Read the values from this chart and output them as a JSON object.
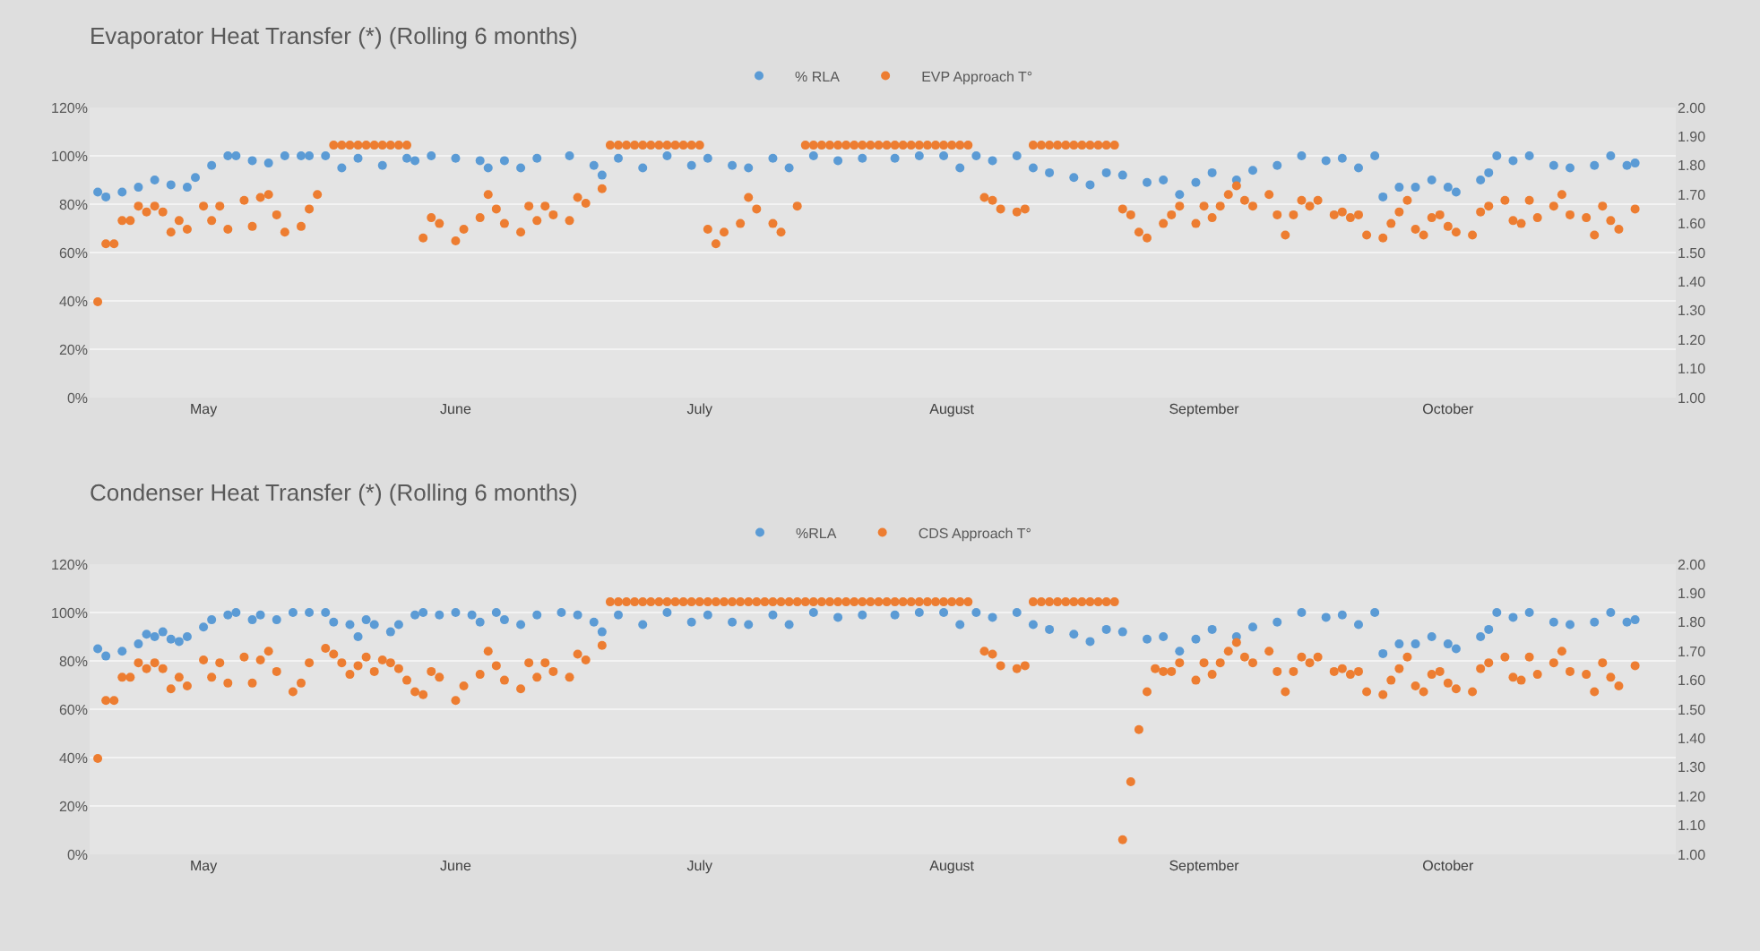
{
  "chart_data": [
    {
      "type": "scatter",
      "title": "Evaporator Heat Transfer (*) (Rolling 6 months)",
      "marker": "circle",
      "grid": "y",
      "legend": "top",
      "xlim": [
        "--04-17",
        "--10-29"
      ],
      "xticks": [
        {
          "value": "--05-01",
          "label": "May"
        },
        {
          "value": "--06-01",
          "label": "June"
        },
        {
          "value": "--07-01",
          "label": "July"
        },
        {
          "value": "--08-01",
          "label": "August"
        },
        {
          "value": "--09-01",
          "label": "September"
        },
        {
          "value": "--10-01",
          "label": "October"
        }
      ],
      "ylim": [
        0,
        120
      ],
      "yticks": [
        {
          "value": 0,
          "label": "0%"
        },
        {
          "value": 20,
          "label": "20%"
        },
        {
          "value": 40,
          "label": "40%"
        },
        {
          "value": 60,
          "label": "60%"
        },
        {
          "value": 80,
          "label": "80%"
        },
        {
          "value": 100,
          "label": "100%"
        },
        {
          "value": 120,
          "label": "120%"
        }
      ],
      "y2lim": [
        1,
        2
      ],
      "y2ticks": [
        {
          "value": 1,
          "label": "1.00"
        },
        {
          "value": 1.1,
          "label": "1.10"
        },
        {
          "value": 1.2,
          "label": "1.20"
        },
        {
          "value": 1.3,
          "label": "1.30"
        },
        {
          "value": 1.4,
          "label": "1.40"
        },
        {
          "value": 1.5,
          "label": "1.50"
        },
        {
          "value": 1.6,
          "label": "1.60"
        },
        {
          "value": 1.7,
          "label": "1.70"
        },
        {
          "value": 1.8,
          "label": "1.80"
        },
        {
          "value": 1.9,
          "label": "1.90"
        },
        {
          "value": 2,
          "label": "2.00"
        }
      ],
      "series": [
        {
          "name": "% RLA",
          "color": "#5b9bd5",
          "x": [
            "--04-18",
            "--04-19",
            "--04-21",
            "--04-23",
            "--04-25",
            "--04-27",
            "--04-29",
            "--04-30",
            "--05-02",
            "--05-04",
            "--05-05",
            "--05-07",
            "--05-09",
            "--05-11",
            "--05-13",
            "--05-14",
            "--05-16",
            "--05-18",
            "--05-20",
            "--05-23",
            "--05-26",
            "--05-27",
            "--05-29",
            "--06-01",
            "--06-04",
            "--06-05",
            "--06-07",
            "--06-09",
            "--06-11",
            "--06-15",
            "--06-18",
            "--06-19",
            "--06-21",
            "--06-24",
            "--06-27",
            "--06-30",
            "--07-02",
            "--07-05",
            "--07-07",
            "--07-10",
            "--07-12",
            "--07-15",
            "--07-18",
            "--07-21",
            "--07-25",
            "--07-28",
            "--07-31",
            "--08-02",
            "--08-04",
            "--08-06",
            "--08-09",
            "--08-11",
            "--08-13",
            "--08-16",
            "--08-18",
            "--08-20",
            "--08-22",
            "--08-25",
            "--08-27",
            "--08-29",
            "--08-31",
            "--09-02",
            "--09-05",
            "--09-07",
            "--09-10",
            "--09-13",
            "--09-16",
            "--09-18",
            "--09-20",
            "--09-22",
            "--09-23",
            "--09-25",
            "--09-27",
            "--09-29",
            "--10-01",
            "--10-02",
            "--10-05",
            "--10-06",
            "--10-07",
            "--10-09",
            "--10-11",
            "--10-14",
            "--10-16",
            "--10-19",
            "--10-21",
            "--10-23",
            "--10-24"
          ],
          "values": [
            85,
            83,
            85,
            87,
            90,
            88,
            87,
            91,
            96,
            100,
            100,
            98,
            97,
            100,
            100,
            100,
            100,
            95,
            99,
            96,
            99,
            98,
            100,
            99,
            98,
            95,
            98,
            95,
            99,
            100,
            96,
            92,
            99,
            95,
            100,
            96,
            99,
            96,
            95,
            99,
            95,
            100,
            98,
            99,
            99,
            100,
            100,
            95,
            100,
            98,
            100,
            95,
            93,
            91,
            88,
            93,
            92,
            89,
            90,
            84,
            89,
            93,
            90,
            94,
            96,
            100,
            98,
            99,
            95,
            100,
            83,
            87,
            87,
            90,
            87,
            85,
            90,
            93,
            100,
            98,
            100,
            96,
            95,
            96,
            100,
            96,
            97
          ]
        },
        {
          "name": "EVP Approach T°",
          "color": "#ed7d31",
          "axis": "y2",
          "x": [
            "--04-18",
            "--04-19",
            "--04-20",
            "--04-21",
            "--04-22",
            "--04-23",
            "--04-24",
            "--04-25",
            "--04-26",
            "--04-27",
            "--04-28",
            "--04-29",
            "--05-01",
            "--05-02",
            "--05-03",
            "--05-04",
            "--05-06",
            "--05-07",
            "--05-08",
            "--05-09",
            "--05-10",
            "--05-11",
            "--05-13",
            "--05-14",
            "--05-15",
            "--05-17",
            "--05-18",
            "--05-19",
            "--05-20",
            "--05-21",
            "--05-22",
            "--05-23",
            "--05-24",
            "--05-25",
            "--05-26",
            "--05-28",
            "--05-29",
            "--05-30",
            "--06-01",
            "--06-02",
            "--06-04",
            "--06-05",
            "--06-06",
            "--06-07",
            "--06-09",
            "--06-10",
            "--06-11",
            "--06-12",
            "--06-13",
            "--06-15",
            "--06-16",
            "--06-17",
            "--06-19",
            "--06-20",
            "--06-21",
            "--06-22",
            "--06-23",
            "--06-24",
            "--06-25",
            "--06-26",
            "--06-27",
            "--06-28",
            "--06-29",
            "--06-30",
            "--07-01",
            "--07-02",
            "--07-03",
            "--07-04",
            "--07-06",
            "--07-07",
            "--07-08",
            "--07-10",
            "--07-11",
            "--07-13",
            "--07-14",
            "--07-15",
            "--07-16",
            "--07-17",
            "--07-18",
            "--07-19",
            "--07-20",
            "--07-21",
            "--07-22",
            "--07-23",
            "--07-24",
            "--07-25",
            "--07-26",
            "--07-27",
            "--07-28",
            "--07-29",
            "--07-30",
            "--07-31",
            "--08-01",
            "--08-02",
            "--08-03",
            "--08-05",
            "--08-06",
            "--08-07",
            "--08-09",
            "--08-10",
            "--08-11",
            "--08-12",
            "--08-13",
            "--08-14",
            "--08-15",
            "--08-16",
            "--08-17",
            "--08-18",
            "--08-19",
            "--08-20",
            "--08-21",
            "--08-22",
            "--08-23",
            "--08-24",
            "--08-25",
            "--08-27",
            "--08-28",
            "--08-29",
            "--08-31",
            "--09-01",
            "--09-02",
            "--09-03",
            "--09-04",
            "--09-05",
            "--09-06",
            "--09-07",
            "--09-09",
            "--09-10",
            "--09-11",
            "--09-12",
            "--09-13",
            "--09-14",
            "--09-15",
            "--09-17",
            "--09-18",
            "--09-19",
            "--09-20",
            "--09-21",
            "--09-23",
            "--09-24",
            "--09-25",
            "--09-26",
            "--09-27",
            "--09-28",
            "--09-29",
            "--09-30",
            "--10-01",
            "--10-02",
            "--10-04",
            "--10-05",
            "--10-06",
            "--10-08",
            "--10-09",
            "--10-10",
            "--10-11",
            "--10-12",
            "--10-14",
            "--10-15",
            "--10-16",
            "--10-18",
            "--10-19",
            "--10-20",
            "--10-21",
            "--10-22",
            "--10-24"
          ],
          "values": [
            1.33,
            1.53,
            1.53,
            1.61,
            1.61,
            1.66,
            1.64,
            1.66,
            1.64,
            1.57,
            1.61,
            1.58,
            1.66,
            1.61,
            1.66,
            1.58,
            1.68,
            1.59,
            1.69,
            1.7,
            1.63,
            1.57,
            1.59,
            1.65,
            1.7,
            1.87,
            1.87,
            1.87,
            1.87,
            1.87,
            1.87,
            1.87,
            1.87,
            1.87,
            1.87,
            1.55,
            1.62,
            1.6,
            1.54,
            1.58,
            1.62,
            1.7,
            1.65,
            1.6,
            1.57,
            1.66,
            1.61,
            1.66,
            1.63,
            1.61,
            1.69,
            1.67,
            1.72,
            1.87,
            1.87,
            1.87,
            1.87,
            1.87,
            1.87,
            1.87,
            1.87,
            1.87,
            1.87,
            1.87,
            1.87,
            1.58,
            1.53,
            1.57,
            1.6,
            1.69,
            1.65,
            1.6,
            1.57,
            1.66,
            1.87,
            1.87,
            1.87,
            1.87,
            1.87,
            1.87,
            1.87,
            1.87,
            1.87,
            1.87,
            1.87,
            1.87,
            1.87,
            1.87,
            1.87,
            1.87,
            1.87,
            1.87,
            1.87,
            1.87,
            1.87,
            1.69,
            1.68,
            1.65,
            1.64,
            1.65,
            1.87,
            1.87,
            1.87,
            1.87,
            1.87,
            1.87,
            1.87,
            1.87,
            1.87,
            1.87,
            1.87,
            1.65,
            1.63,
            1.57,
            1.55,
            1.6,
            1.63,
            1.66,
            1.6,
            1.66,
            1.62,
            1.66,
            1.7,
            1.73,
            1.68,
            1.66,
            1.7,
            1.63,
            1.56,
            1.63,
            1.68,
            1.66,
            1.68,
            1.63,
            1.64,
            1.62,
            1.63,
            1.56,
            1.55,
            1.6,
            1.64,
            1.68,
            1.58,
            1.56,
            1.62,
            1.63,
            1.59,
            1.57,
            1.56,
            1.64,
            1.66,
            1.68,
            1.61,
            1.6,
            1.68,
            1.62,
            1.66,
            1.7,
            1.63,
            1.62,
            1.56,
            1.66,
            1.61,
            1.58,
            1.65
          ]
        }
      ]
    },
    {
      "type": "scatter",
      "title": "Condenser Heat Transfer (*) (Rolling 6 months)",
      "marker": "circle",
      "grid": "y",
      "legend": "top",
      "xlim": [
        "--04-17",
        "--10-29"
      ],
      "xticks": [
        {
          "value": "--05-01",
          "label": "May"
        },
        {
          "value": "--06-01",
          "label": "June"
        },
        {
          "value": "--07-01",
          "label": "July"
        },
        {
          "value": "--08-01",
          "label": "August"
        },
        {
          "value": "--09-01",
          "label": "September"
        },
        {
          "value": "--10-01",
          "label": "October"
        }
      ],
      "ylim": [
        0,
        120
      ],
      "yticks": [
        {
          "value": 0,
          "label": "0%"
        },
        {
          "value": 20,
          "label": "20%"
        },
        {
          "value": 40,
          "label": "40%"
        },
        {
          "value": 60,
          "label": "60%"
        },
        {
          "value": 80,
          "label": "80%"
        },
        {
          "value": 100,
          "label": "100%"
        },
        {
          "value": 120,
          "label": "120%"
        }
      ],
      "y2lim": [
        1,
        2
      ],
      "y2ticks": [
        {
          "value": 1,
          "label": "1.00"
        },
        {
          "value": 1.1,
          "label": "1.10"
        },
        {
          "value": 1.2,
          "label": "1.20"
        },
        {
          "value": 1.3,
          "label": "1.30"
        },
        {
          "value": 1.4,
          "label": "1.40"
        },
        {
          "value": 1.5,
          "label": "1.50"
        },
        {
          "value": 1.6,
          "label": "1.60"
        },
        {
          "value": 1.7,
          "label": "1.70"
        },
        {
          "value": 1.8,
          "label": "1.80"
        },
        {
          "value": 1.9,
          "label": "1.90"
        },
        {
          "value": 2,
          "label": "2.00"
        }
      ],
      "series": [
        {
          "name": "%RLA",
          "color": "#5b9bd5",
          "x": [
            "--04-18",
            "--04-19",
            "--04-21",
            "--04-23",
            "--04-24",
            "--04-25",
            "--04-26",
            "--04-27",
            "--04-28",
            "--04-29",
            "--05-01",
            "--05-02",
            "--05-04",
            "--05-05",
            "--05-07",
            "--05-08",
            "--05-10",
            "--05-12",
            "--05-14",
            "--05-16",
            "--05-17",
            "--05-19",
            "--05-20",
            "--05-21",
            "--05-22",
            "--05-24",
            "--05-25",
            "--05-27",
            "--05-28",
            "--05-30",
            "--06-01",
            "--06-03",
            "--06-04",
            "--06-06",
            "--06-07",
            "--06-09",
            "--06-11",
            "--06-14",
            "--06-16",
            "--06-18",
            "--06-19",
            "--06-21",
            "--06-24",
            "--06-27",
            "--06-30",
            "--07-02",
            "--07-05",
            "--07-07",
            "--07-10",
            "--07-12",
            "--07-15",
            "--07-18",
            "--07-21",
            "--07-25",
            "--07-28",
            "--07-31",
            "--08-02",
            "--08-04",
            "--08-06",
            "--08-09",
            "--08-11",
            "--08-13",
            "--08-16",
            "--08-18",
            "--08-20",
            "--08-22",
            "--08-25",
            "--08-27",
            "--08-29",
            "--08-31",
            "--09-02",
            "--09-05",
            "--09-07",
            "--09-10",
            "--09-13",
            "--09-16",
            "--09-18",
            "--09-20",
            "--09-22",
            "--09-23",
            "--09-25",
            "--09-27",
            "--09-29",
            "--10-01",
            "--10-02",
            "--10-05",
            "--10-06",
            "--10-07",
            "--10-09",
            "--10-11",
            "--10-14",
            "--10-16",
            "--10-19",
            "--10-21",
            "--10-23",
            "--10-24"
          ],
          "values": [
            85,
            82,
            84,
            87,
            91,
            90,
            92,
            89,
            88,
            90,
            94,
            97,
            99,
            100,
            97,
            99,
            97,
            100,
            100,
            100,
            96,
            95,
            90,
            97,
            95,
            92,
            95,
            99,
            100,
            99,
            100,
            99,
            96,
            100,
            97,
            95,
            99,
            100,
            99,
            96,
            92,
            99,
            95,
            100,
            96,
            99,
            96,
            95,
            99,
            95,
            100,
            98,
            99,
            99,
            100,
            100,
            95,
            100,
            98,
            100,
            95,
            93,
            91,
            88,
            93,
            92,
            89,
            90,
            84,
            89,
            93,
            90,
            94,
            96,
            100,
            98,
            99,
            95,
            100,
            83,
            87,
            87,
            90,
            87,
            85,
            90,
            93,
            100,
            98,
            100,
            96,
            95,
            96,
            100,
            96,
            97
          ]
        },
        {
          "name": "CDS Approach T°",
          "color": "#ed7d31",
          "axis": "y2",
          "x": [
            "--04-18",
            "--04-19",
            "--04-20",
            "--04-21",
            "--04-22",
            "--04-23",
            "--04-24",
            "--04-25",
            "--04-26",
            "--04-27",
            "--04-28",
            "--04-29",
            "--05-01",
            "--05-02",
            "--05-03",
            "--05-04",
            "--05-06",
            "--05-07",
            "--05-08",
            "--05-09",
            "--05-10",
            "--05-12",
            "--05-13",
            "--05-14",
            "--05-16",
            "--05-17",
            "--05-18",
            "--05-19",
            "--05-20",
            "--05-21",
            "--05-22",
            "--05-23",
            "--05-24",
            "--05-25",
            "--05-26",
            "--05-27",
            "--05-28",
            "--05-29",
            "--05-30",
            "--06-01",
            "--06-02",
            "--06-04",
            "--06-05",
            "--06-06",
            "--06-07",
            "--06-09",
            "--06-10",
            "--06-11",
            "--06-12",
            "--06-13",
            "--06-15",
            "--06-16",
            "--06-17",
            "--06-19",
            "--06-20",
            "--06-21",
            "--06-22",
            "--06-23",
            "--06-24",
            "--06-25",
            "--06-26",
            "--06-27",
            "--06-28",
            "--06-29",
            "--06-30",
            "--07-01",
            "--07-02",
            "--07-03",
            "--07-04",
            "--07-05",
            "--07-06",
            "--07-07",
            "--07-08",
            "--07-09",
            "--07-10",
            "--07-11",
            "--07-12",
            "--07-13",
            "--07-14",
            "--07-15",
            "--07-16",
            "--07-17",
            "--07-18",
            "--07-19",
            "--07-20",
            "--07-21",
            "--07-22",
            "--07-23",
            "--07-24",
            "--07-25",
            "--07-26",
            "--07-27",
            "--07-28",
            "--07-29",
            "--07-30",
            "--07-31",
            "--08-01",
            "--08-02",
            "--08-03",
            "--08-05",
            "--08-06",
            "--08-07",
            "--08-09",
            "--08-10",
            "--08-11",
            "--08-12",
            "--08-13",
            "--08-14",
            "--08-15",
            "--08-16",
            "--08-17",
            "--08-18",
            "--08-19",
            "--08-20",
            "--08-21",
            "--08-22",
            "--08-23",
            "--08-24",
            "--08-25",
            "--08-26",
            "--08-27",
            "--08-28",
            "--08-29",
            "--08-31",
            "--09-01",
            "--09-02",
            "--09-03",
            "--09-04",
            "--09-05",
            "--09-06",
            "--09-07",
            "--09-09",
            "--09-10",
            "--09-11",
            "--09-12",
            "--09-13",
            "--09-14",
            "--09-15",
            "--09-17",
            "--09-18",
            "--09-19",
            "--09-20",
            "--09-21",
            "--09-23",
            "--09-24",
            "--09-25",
            "--09-26",
            "--09-27",
            "--09-28",
            "--09-29",
            "--09-30",
            "--10-01",
            "--10-02",
            "--10-04",
            "--10-05",
            "--10-06",
            "--10-08",
            "--10-09",
            "--10-10",
            "--10-11",
            "--10-12",
            "--10-14",
            "--10-15",
            "--10-16",
            "--10-18",
            "--10-19",
            "--10-20",
            "--10-21",
            "--10-22",
            "--10-24"
          ],
          "values": [
            1.33,
            1.53,
            1.53,
            1.61,
            1.61,
            1.66,
            1.64,
            1.66,
            1.64,
            1.57,
            1.61,
            1.58,
            1.67,
            1.61,
            1.66,
            1.59,
            1.68,
            1.59,
            1.67,
            1.7,
            1.63,
            1.56,
            1.59,
            1.66,
            1.71,
            1.69,
            1.66,
            1.62,
            1.65,
            1.68,
            1.63,
            1.67,
            1.66,
            1.64,
            1.6,
            1.56,
            1.55,
            1.63,
            1.61,
            1.53,
            1.58,
            1.62,
            1.7,
            1.65,
            1.6,
            1.57,
            1.66,
            1.61,
            1.66,
            1.63,
            1.61,
            1.69,
            1.67,
            1.72,
            1.87,
            1.87,
            1.87,
            1.87,
            1.87,
            1.87,
            1.87,
            1.87,
            1.87,
            1.87,
            1.87,
            1.87,
            1.87,
            1.87,
            1.87,
            1.87,
            1.87,
            1.87,
            1.87,
            1.87,
            1.87,
            1.87,
            1.87,
            1.87,
            1.87,
            1.87,
            1.87,
            1.87,
            1.87,
            1.87,
            1.87,
            1.87,
            1.87,
            1.87,
            1.87,
            1.87,
            1.87,
            1.87,
            1.87,
            1.87,
            1.87,
            1.87,
            1.87,
            1.87,
            1.87,
            1.7,
            1.69,
            1.65,
            1.64,
            1.65,
            1.87,
            1.87,
            1.87,
            1.87,
            1.87,
            1.87,
            1.87,
            1.87,
            1.87,
            1.87,
            1.87,
            1.05,
            1.25,
            1.43,
            1.56,
            1.64,
            1.63,
            1.63,
            1.66,
            1.6,
            1.66,
            1.62,
            1.66,
            1.7,
            1.73,
            1.68,
            1.66,
            1.7,
            1.63,
            1.56,
            1.63,
            1.68,
            1.66,
            1.68,
            1.63,
            1.64,
            1.62,
            1.63,
            1.56,
            1.55,
            1.6,
            1.64,
            1.68,
            1.58,
            1.56,
            1.62,
            1.63,
            1.59,
            1.57,
            1.56,
            1.64,
            1.66,
            1.68,
            1.61,
            1.6,
            1.68,
            1.62,
            1.66,
            1.7,
            1.63,
            1.62,
            1.56,
            1.66,
            1.61,
            1.58,
            1.65
          ]
        }
      ]
    }
  ]
}
